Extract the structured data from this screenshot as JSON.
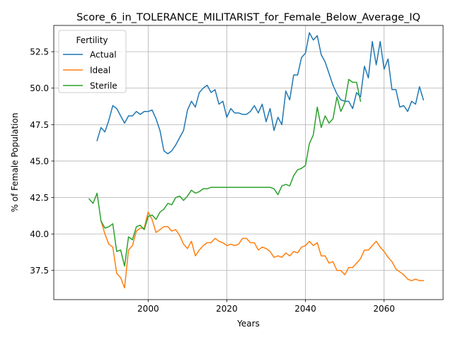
{
  "chart_data": {
    "type": "line",
    "title": "Score_6_in_TOLERANCE_MILITARIST_for_Female_Below_Average_IQ",
    "xlabel": "Years",
    "ylabel": "% of Female Population",
    "xlim": [
      1976,
      2075
    ],
    "ylim": [
      35.5,
      54.3
    ],
    "xticks": [
      2000,
      2020,
      2040,
      2060
    ],
    "yticks": [
      37.5,
      40.0,
      42.5,
      45.0,
      47.5,
      50.0,
      52.5
    ],
    "ytick_labels": [
      "37.5",
      "40.0",
      "42.5",
      "45.0",
      "47.5",
      "50.0",
      "52.5"
    ],
    "grid": true,
    "legend": {
      "title": "Fertility",
      "placement": "top-left"
    },
    "series": [
      {
        "name": "Actual",
        "color": "#1f77b4",
        "x": [
          1987,
          1988,
          1989,
          1990,
          1991,
          1992,
          1993,
          1994,
          1995,
          1996,
          1997,
          1998,
          1999,
          2000,
          2001,
          2002,
          2003,
          2004,
          2005,
          2006,
          2007,
          2008,
          2009,
          2010,
          2011,
          2012,
          2013,
          2014,
          2015,
          2016,
          2017,
          2018,
          2019,
          2020,
          2021,
          2022,
          2023,
          2024,
          2025,
          2026,
          2027,
          2028,
          2029,
          2030,
          2031,
          2032,
          2033,
          2034,
          2035,
          2036,
          2037,
          2038,
          2039,
          2040,
          2041,
          2042,
          2043,
          2044,
          2045,
          2046,
          2047,
          2048,
          2049,
          2050,
          2051,
          2052,
          2053,
          2054,
          2055,
          2056,
          2057,
          2058,
          2059,
          2060,
          2061,
          2062,
          2063,
          2064,
          2065,
          2066,
          2067,
          2068,
          2069,
          2070
        ],
        "values": [
          46.4,
          47.3,
          47.0,
          47.8,
          48.8,
          48.6,
          48.1,
          47.6,
          48.1,
          48.1,
          48.4,
          48.2,
          48.4,
          48.4,
          48.5,
          47.9,
          47.1,
          45.7,
          45.5,
          45.7,
          46.1,
          46.6,
          47.1,
          48.5,
          49.1,
          48.7,
          49.7,
          50.0,
          50.2,
          49.7,
          49.9,
          48.9,
          49.1,
          48.0,
          48.6,
          48.3,
          48.3,
          48.2,
          48.2,
          48.4,
          48.8,
          48.3,
          48.9,
          47.7,
          48.6,
          47.1,
          48.0,
          47.5,
          49.8,
          49.2,
          50.9,
          50.9,
          52.1,
          52.4,
          53.8,
          53.3,
          53.6,
          52.3,
          51.8,
          51.0,
          50.2,
          49.6,
          49.2,
          49.1,
          49.1,
          48.6,
          49.7,
          49.4,
          51.5,
          50.7,
          53.2,
          51.6,
          53.2,
          51.3,
          52.0,
          49.9,
          49.9,
          48.7,
          48.8,
          48.4,
          49.1,
          48.9,
          50.1,
          49.2
        ]
      },
      {
        "name": "Ideal",
        "color": "#ff7f0e",
        "x": [
          1988,
          1989,
          1990,
          1991,
          1992,
          1993,
          1994,
          1995,
          1996,
          1997,
          1998,
          1999,
          2000,
          2001,
          2002,
          2003,
          2004,
          2005,
          2006,
          2007,
          2008,
          2009,
          2010,
          2011,
          2012,
          2013,
          2014,
          2015,
          2016,
          2017,
          2018,
          2019,
          2020,
          2021,
          2022,
          2023,
          2024,
          2025,
          2026,
          2027,
          2028,
          2029,
          2030,
          2031,
          2032,
          2033,
          2034,
          2035,
          2036,
          2037,
          2038,
          2039,
          2040,
          2041,
          2042,
          2043,
          2044,
          2045,
          2046,
          2047,
          2048,
          2049,
          2050,
          2051,
          2052,
          2053,
          2054,
          2055,
          2056,
          2057,
          2058,
          2059,
          2060,
          2061,
          2062,
          2063,
          2064,
          2065,
          2066,
          2067,
          2068,
          2069,
          2070
        ],
        "values": [
          40.9,
          40.0,
          39.3,
          39.1,
          37.3,
          37.0,
          36.3,
          38.9,
          39.2,
          40.2,
          40.4,
          40.4,
          41.5,
          41.0,
          40.1,
          40.3,
          40.5,
          40.5,
          40.2,
          40.3,
          39.9,
          39.3,
          39.0,
          39.5,
          38.5,
          38.9,
          39.2,
          39.4,
          39.4,
          39.7,
          39.5,
          39.4,
          39.2,
          39.3,
          39.2,
          39.3,
          39.7,
          39.7,
          39.4,
          39.4,
          38.9,
          39.1,
          39.0,
          38.8,
          38.4,
          38.5,
          38.4,
          38.7,
          38.5,
          38.8,
          38.7,
          39.1,
          39.2,
          39.5,
          39.2,
          39.4,
          38.5,
          38.5,
          38.0,
          38.1,
          37.5,
          37.5,
          37.2,
          37.7,
          37.7,
          38.0,
          38.3,
          38.9,
          38.9,
          39.2,
          39.5,
          39.1,
          38.8,
          38.4,
          38.1,
          37.6,
          37.4,
          37.2,
          36.9,
          36.8,
          36.9,
          36.8,
          36.8
        ]
      },
      {
        "name": "Sterile",
        "color": "#2ca02c",
        "x": [
          1985,
          1986,
          1987,
          1988,
          1989,
          1990,
          1991,
          1992,
          1993,
          1994,
          1995,
          1996,
          1997,
          1998,
          1999,
          2000,
          2001,
          2002,
          2003,
          2004,
          2005,
          2006,
          2007,
          2008,
          2009,
          2010,
          2011,
          2012,
          2013,
          2014,
          2015,
          2016,
          2017,
          2018,
          2019,
          2020,
          2021,
          2022,
          2023,
          2024,
          2025,
          2026,
          2027,
          2028,
          2029,
          2030,
          2031,
          2032,
          2033,
          2034,
          2035,
          2036,
          2037,
          2038,
          2039,
          2040,
          2041,
          2042,
          2043,
          2044,
          2045,
          2046,
          2047,
          2048,
          2049,
          2050,
          2051,
          2052,
          2053,
          2054
        ],
        "values": [
          42.4,
          42.1,
          42.8,
          40.9,
          40.4,
          40.5,
          40.7,
          38.8,
          38.9,
          37.8,
          39.8,
          39.6,
          40.5,
          40.6,
          40.3,
          41.2,
          41.3,
          41.0,
          41.5,
          41.7,
          42.1,
          42.0,
          42.5,
          42.6,
          42.3,
          42.6,
          43.0,
          42.8,
          42.9,
          43.1,
          43.1,
          43.2,
          43.2,
          43.2,
          43.2,
          43.2,
          43.2,
          43.2,
          43.2,
          43.2,
          43.2,
          43.2,
          43.2,
          43.2,
          43.2,
          43.2,
          43.2,
          43.1,
          42.7,
          43.3,
          43.4,
          43.3,
          44.0,
          44.4,
          44.5,
          44.7,
          46.2,
          46.8,
          48.7,
          47.3,
          48.1,
          47.6,
          47.9,
          49.4,
          48.4,
          49.0,
          50.6,
          50.4,
          50.4,
          49.1
        ]
      }
    ]
  }
}
